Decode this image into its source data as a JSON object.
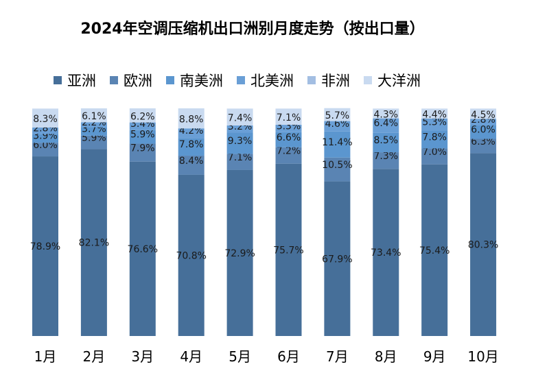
{
  "chart_data": {
    "type": "bar",
    "stacked": true,
    "title": "2024年空调压缩机出口洲别月度走势（按出口量）",
    "categories": [
      "1月",
      "2月",
      "3月",
      "4月",
      "5月",
      "6月",
      "7月",
      "8月",
      "9月",
      "10月"
    ],
    "series": [
      {
        "name": "亚洲",
        "color": "#466f99",
        "values": [
          78.9,
          82.1,
          76.6,
          70.8,
          72.9,
          75.7,
          67.9,
          73.4,
          75.4,
          80.3
        ]
      },
      {
        "name": "欧洲",
        "color": "#5a84b3",
        "values": [
          6.0,
          5.9,
          7.9,
          8.4,
          7.1,
          7.2,
          10.5,
          7.3,
          7.0,
          6.3
        ]
      },
      {
        "name": "南美洲",
        "color": "#5b96cf",
        "values": [
          3.9,
          3.7,
          5.9,
          7.8,
          9.3,
          6.6,
          11.4,
          8.5,
          7.8,
          6.0
        ]
      },
      {
        "name": "北美洲",
        "color": "#6a9fd6",
        "values": [
          2.8,
          2.2,
          3.4,
          4.2,
          3.2,
          3.3,
          4.6,
          6.4,
          5.3,
          2.8
        ]
      },
      {
        "name": "非洲",
        "color": "#a3bee2",
        "values": [
          0.0,
          0.0,
          0.0,
          0.0,
          0.0,
          0.0,
          0.0,
          0.0,
          0.0,
          0.0
        ]
      },
      {
        "name": "大洋洲",
        "color": "#c9daf0",
        "values": [
          8.3,
          6.1,
          6.2,
          8.8,
          7.4,
          7.1,
          5.7,
          4.3,
          4.4,
          4.5
        ]
      }
    ],
    "data_labels": [
      [
        "78.9%",
        "6.0%",
        "3.9%",
        "2.8%",
        "",
        "8.3%"
      ],
      [
        "82.1%",
        "5.9%",
        "3.7%",
        "2.2%",
        "",
        "6.1%"
      ],
      [
        "76.6%",
        "7.9%",
        "5.9%",
        "3.4%",
        "",
        "6.2%"
      ],
      [
        "70.8%",
        "8.4%",
        "7.8%",
        "4.2%",
        "",
        "8.8%"
      ],
      [
        "72.9%",
        "7.1%",
        "9.3%",
        "3.2%",
        "",
        "7.4%"
      ],
      [
        "75.7%",
        "7.2%",
        "6.6%",
        "3.3%",
        "",
        "7.1%"
      ],
      [
        "67.9%",
        "10.5%",
        "11.4%",
        "4.6%",
        "",
        "5.7%"
      ],
      [
        "73.4%",
        "7.3%",
        "8.5%",
        "6.4%",
        "",
        "4.3%"
      ],
      [
        "75.4%",
        "7.0%",
        "7.8%",
        "5.3%",
        "",
        "4.4%"
      ],
      [
        "80.3%",
        "6.3%",
        "6.0%",
        "2.8%",
        "",
        "4.5%"
      ]
    ],
    "ylim": [
      0,
      100
    ],
    "grid": false,
    "legend_position": "top"
  }
}
